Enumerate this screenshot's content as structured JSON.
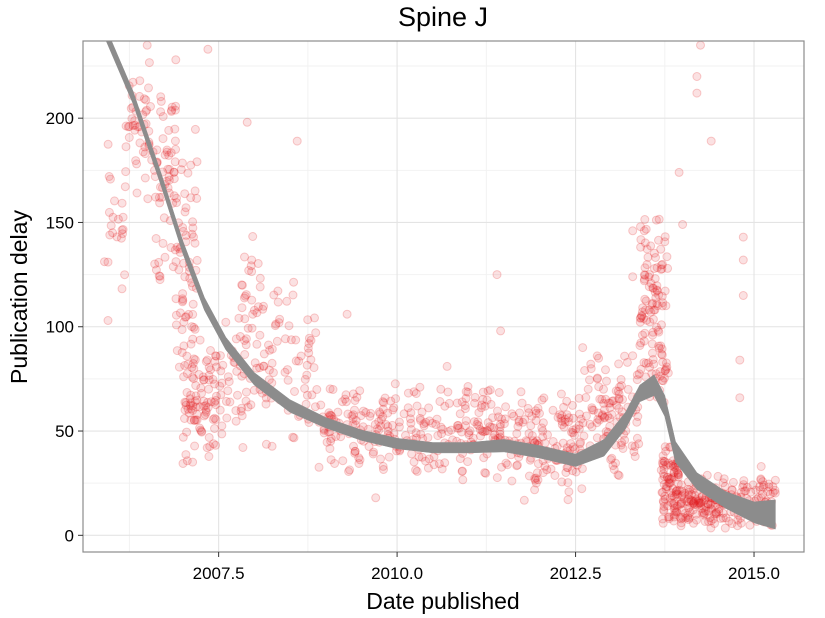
{
  "chart_data": {
    "type": "scatter",
    "title": "Spine J",
    "xlabel": "Date published",
    "ylabel": "Publication delay",
    "xlim": [
      2005.6,
      2015.7
    ],
    "ylim": [
      -8,
      237
    ],
    "x_ticks": [
      "2007.5",
      "2010.0",
      "2012.5",
      "2015.0"
    ],
    "x_tick_values": [
      2007.5,
      2010.0,
      2012.5,
      2015.0
    ],
    "y_ticks": [
      "0",
      "50",
      "100",
      "150",
      "200"
    ],
    "y_tick_values": [
      0,
      50,
      100,
      150,
      200
    ],
    "grid": true,
    "point_color": "#e31a1c",
    "band_color": "#8c8c8c",
    "smooth": {
      "x": [
        2005.9,
        2006.3,
        2006.7,
        2007.0,
        2007.3,
        2007.6,
        2008.0,
        2008.5,
        2009.0,
        2009.5,
        2010.0,
        2010.5,
        2011.0,
        2011.5,
        2012.0,
        2012.5,
        2012.9,
        2013.2,
        2013.4,
        2013.6,
        2013.75,
        2013.9,
        2014.2,
        2014.6,
        2015.0,
        2015.3
      ],
      "y": [
        242,
        210,
        170,
        138,
        111,
        92,
        75,
        62,
        54,
        48,
        44,
        42,
        42,
        43,
        40,
        36,
        42,
        55,
        68,
        72,
        62,
        40,
        26,
        17,
        11,
        10
      ],
      "band": [
        3,
        3,
        3,
        3,
        3,
        3,
        3,
        3,
        2.5,
        2.5,
        2.5,
        2.5,
        2.5,
        3,
        3,
        3,
        4,
        4,
        4,
        5,
        5,
        5,
        4,
        4,
        5,
        7
      ]
    },
    "clusters": [
      {
        "x": [
          2005.9,
          2006.2
        ],
        "y": [
          100,
          210
        ],
        "n": 22
      },
      {
        "x": [
          2006.2,
          2006.6
        ],
        "y": [
          155,
          235
        ],
        "n": 45
      },
      {
        "x": [
          2006.6,
          2006.9
        ],
        "y": [
          110,
          230
        ],
        "n": 60
      },
      {
        "x": [
          2006.9,
          2007.2
        ],
        "y": [
          55,
          200
        ],
        "n": 70
      },
      {
        "x": [
          2007.0,
          2007.5
        ],
        "y": [
          32,
          95
        ],
        "n": 90
      },
      {
        "x": [
          2007.5,
          2007.9
        ],
        "y": [
          40,
          110
        ],
        "n": 40
      },
      {
        "x": [
          2007.8,
          2008.1
        ],
        "y": [
          50,
          160
        ],
        "n": 35
      },
      {
        "x": [
          2008.1,
          2008.9
        ],
        "y": [
          38,
          130
        ],
        "n": 70
      },
      {
        "x": [
          2008.9,
          2010.2
        ],
        "y": [
          28,
          75
        ],
        "n": 130
      },
      {
        "x": [
          2010.2,
          2011.6
        ],
        "y": [
          25,
          75
        ],
        "n": 150
      },
      {
        "x": [
          2011.6,
          2012.6
        ],
        "y": [
          15,
          70
        ],
        "n": 150
      },
      {
        "x": [
          2012.6,
          2013.4
        ],
        "y": [
          25,
          90
        ],
        "n": 110
      },
      {
        "x": [
          2013.4,
          2013.8
        ],
        "y": [
          55,
          160
        ],
        "n": 120
      },
      {
        "x": [
          2013.7,
          2013.95
        ],
        "y": [
          3,
          45
        ],
        "n": 90
      },
      {
        "x": [
          2013.95,
          2014.6
        ],
        "y": [
          2,
          30
        ],
        "n": 130
      },
      {
        "x": [
          2014.6,
          2015.3
        ],
        "y": [
          2,
          30
        ],
        "n": 90
      }
    ],
    "outliers": [
      {
        "x": 2005.95,
        "y": 103
      },
      {
        "x": 2005.95,
        "y": 131
      },
      {
        "x": 2006.25,
        "y": 196
      },
      {
        "x": 2006.5,
        "y": 235
      },
      {
        "x": 2006.9,
        "y": 228
      },
      {
        "x": 2007.35,
        "y": 233
      },
      {
        "x": 2007.9,
        "y": 198
      },
      {
        "x": 2008.6,
        "y": 189
      },
      {
        "x": 2009.3,
        "y": 106
      },
      {
        "x": 2009.7,
        "y": 18
      },
      {
        "x": 2010.7,
        "y": 81
      },
      {
        "x": 2011.4,
        "y": 125
      },
      {
        "x": 2011.45,
        "y": 98
      },
      {
        "x": 2012.6,
        "y": 90
      },
      {
        "x": 2013.3,
        "y": 146
      },
      {
        "x": 2013.3,
        "y": 124
      },
      {
        "x": 2013.95,
        "y": 174
      },
      {
        "x": 2014.0,
        "y": 149
      },
      {
        "x": 2014.2,
        "y": 220
      },
      {
        "x": 2014.2,
        "y": 212
      },
      {
        "x": 2014.25,
        "y": 235
      },
      {
        "x": 2014.4,
        "y": 189
      },
      {
        "x": 2014.85,
        "y": 143
      },
      {
        "x": 2014.85,
        "y": 132
      },
      {
        "x": 2014.85,
        "y": 115
      },
      {
        "x": 2014.8,
        "y": 84
      },
      {
        "x": 2014.8,
        "y": 66
      },
      {
        "x": 2015.1,
        "y": 33
      }
    ]
  }
}
